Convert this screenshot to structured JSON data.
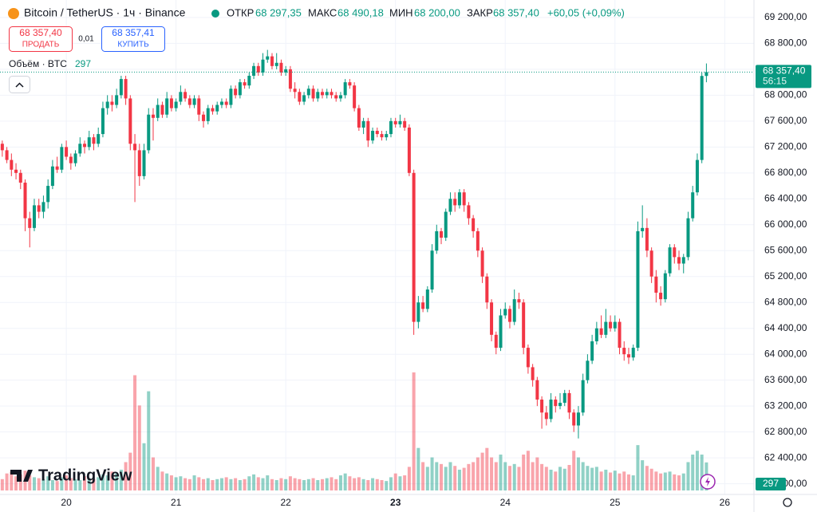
{
  "header": {
    "symbol": "Bitcoin / TetherUS · 1ч · Binance",
    "open_label": "ОТКР",
    "open": "68 297,35",
    "high_label": "МАКС",
    "high": "68 490,18",
    "low_label": "МИН",
    "low": "68 200,00",
    "close_label": "ЗАКР",
    "close": "68 357,40",
    "change": "+60,05 (+0,09%)"
  },
  "trade": {
    "sell_price": "68 357,40",
    "sell": "ПРОДАТЬ",
    "spread": "0,01",
    "buy_price": "68 357,41",
    "buy": "КУПИТЬ"
  },
  "volume_legend": "Объём · BTC",
  "logo": "TradingView",
  "chart_data": {
    "type": "candlestick",
    "up_color": "#089981",
    "down_color": "#f23645",
    "grid": true,
    "xlim": [
      -0.5,
      164.4
    ],
    "xticks": [
      {
        "value": 14,
        "label": "20"
      },
      {
        "value": 38,
        "label": "21"
      },
      {
        "value": 62,
        "label": "22"
      },
      {
        "value": 86,
        "label": "23"
      },
      {
        "value": 110,
        "label": "24"
      },
      {
        "value": 134,
        "label": "25"
      },
      {
        "value": 158,
        "label": "26"
      }
    ],
    "ylim": [
      61835,
      69470
    ],
    "yticks": [
      {
        "value": 62000,
        "label": "62 000,00"
      },
      {
        "value": 62400,
        "label": "62 400,00"
      },
      {
        "value": 62800,
        "label": "62 800,00"
      },
      {
        "value": 63200,
        "label": "63 200,00"
      },
      {
        "value": 63600,
        "label": "63 600,00"
      },
      {
        "value": 64000,
        "label": "64 000,00"
      },
      {
        "value": 64400,
        "label": "64 400,00"
      },
      {
        "value": 64800,
        "label": "64 800,00"
      },
      {
        "value": 65200,
        "label": "65 200,00"
      },
      {
        "value": 65600,
        "label": "65 600,00"
      },
      {
        "value": 66000,
        "label": "66 000,00"
      },
      {
        "value": 66400,
        "label": "66 400,00"
      },
      {
        "value": 66800,
        "label": "66 800,00"
      },
      {
        "value": 67200,
        "label": "67 200,00"
      },
      {
        "value": 67600,
        "label": "67 600,00"
      },
      {
        "value": 68000,
        "label": "68 000,00"
      },
      {
        "value": 68400,
        "label": "68 400,00"
      },
      {
        "value": 68800,
        "label": "68 800,00"
      },
      {
        "value": 69200,
        "label": "69 200,00"
      }
    ],
    "price_label": {
      "value": 68357.4,
      "label": "68 357,40"
    },
    "countdown": "56:15",
    "vlim": [
      0,
      1300
    ],
    "ohlc": [
      [
        67250,
        67300,
        67050,
        67150
      ],
      [
        67150,
        67200,
        66950,
        67000
      ],
      [
        67000,
        67100,
        66750,
        66850
      ],
      [
        66850,
        66950,
        66700,
        66800
      ],
      [
        66800,
        66850,
        66550,
        66650
      ],
      [
        66650,
        66700,
        65900,
        66100
      ],
      [
        66100,
        66200,
        65650,
        65950
      ],
      [
        65950,
        66400,
        65900,
        66300
      ],
      [
        66300,
        66400,
        66100,
        66200
      ],
      [
        66200,
        66450,
        66100,
        66350
      ],
      [
        66350,
        66700,
        66250,
        66600
      ],
      [
        66600,
        67000,
        66550,
        66900
      ],
      [
        66900,
        67050,
        66800,
        66850
      ],
      [
        66850,
        67250,
        66800,
        67200
      ],
      [
        67200,
        67300,
        67000,
        67050
      ],
      [
        67050,
        67100,
        66850,
        66950
      ],
      [
        66950,
        67150,
        66900,
        67100
      ],
      [
        67100,
        67350,
        67050,
        67250
      ],
      [
        67250,
        67300,
        67100,
        67200
      ],
      [
        67200,
        67450,
        67150,
        67350
      ],
      [
        67350,
        67400,
        67150,
        67250
      ],
      [
        67250,
        67500,
        67200,
        67400
      ],
      [
        67400,
        67900,
        67350,
        67800
      ],
      [
        67800,
        68000,
        67700,
        67900
      ],
      [
        67900,
        68000,
        67750,
        67850
      ],
      [
        67850,
        68100,
        67800,
        68000
      ],
      [
        68000,
        68300,
        67950,
        68250
      ],
      [
        68250,
        68300,
        67850,
        67950
      ],
      [
        67950,
        68000,
        67150,
        67250
      ],
      [
        67250,
        67400,
        66350,
        67150
      ],
      [
        67150,
        67250,
        66600,
        66750
      ],
      [
        66750,
        67250,
        66700,
        67150
      ],
      [
        67150,
        67800,
        67100,
        67700
      ],
      [
        67700,
        67800,
        67300,
        67650
      ],
      [
        67650,
        67950,
        67600,
        67850
      ],
      [
        67850,
        67900,
        67650,
        67700
      ],
      [
        67700,
        68050,
        67650,
        67950
      ],
      [
        67950,
        68000,
        67750,
        67800
      ],
      [
        67800,
        67950,
        67750,
        67900
      ],
      [
        67900,
        68150,
        67850,
        68050
      ],
      [
        68050,
        68100,
        67900,
        67950
      ],
      [
        67950,
        68000,
        67800,
        67850
      ],
      [
        67850,
        68000,
        67800,
        67950
      ],
      [
        67950,
        68000,
        67600,
        67700
      ],
      [
        67700,
        67750,
        67500,
        67600
      ],
      [
        67600,
        67850,
        67550,
        67800
      ],
      [
        67800,
        67850,
        67700,
        67750
      ],
      [
        67750,
        67900,
        67700,
        67850
      ],
      [
        67850,
        67950,
        67800,
        67900
      ],
      [
        67900,
        67950,
        67800,
        67850
      ],
      [
        67850,
        68150,
        67800,
        68100
      ],
      [
        68100,
        68150,
        67950,
        68000
      ],
      [
        68000,
        68250,
        67950,
        68200
      ],
      [
        68200,
        68250,
        68100,
        68150
      ],
      [
        68150,
        68350,
        68100,
        68300
      ],
      [
        68300,
        68500,
        68250,
        68450
      ],
      [
        68450,
        68500,
        68300,
        68350
      ],
      [
        68350,
        68650,
        68300,
        68550
      ],
      [
        68550,
        68700,
        68500,
        68600
      ],
      [
        68600,
        68650,
        68400,
        68450
      ],
      [
        68450,
        68650,
        68400,
        68500
      ],
      [
        68500,
        68550,
        68300,
        68350
      ],
      [
        68350,
        68450,
        68300,
        68400
      ],
      [
        68400,
        68450,
        68050,
        68100
      ],
      [
        68100,
        68200,
        67950,
        68050
      ],
      [
        68050,
        68100,
        67850,
        67900
      ],
      [
        67900,
        68050,
        67850,
        68000
      ],
      [
        68000,
        68150,
        67950,
        68100
      ],
      [
        68100,
        68150,
        67900,
        67950
      ],
      [
        67950,
        68100,
        67900,
        68050
      ],
      [
        68050,
        68100,
        67950,
        68000
      ],
      [
        68000,
        68100,
        67950,
        68050
      ],
      [
        68050,
        68100,
        67950,
        68000
      ],
      [
        68000,
        68050,
        67900,
        67950
      ],
      [
        67950,
        68050,
        67900,
        68000
      ],
      [
        68000,
        68250,
        67950,
        68200
      ],
      [
        68200,
        68250,
        68100,
        68150
      ],
      [
        68150,
        68200,
        67750,
        67800
      ],
      [
        67800,
        67850,
        67450,
        67500
      ],
      [
        67500,
        67650,
        67400,
        67600
      ],
      [
        67600,
        67650,
        67200,
        67300
      ],
      [
        67300,
        67500,
        67250,
        67450
      ],
      [
        67450,
        67500,
        67350,
        67400
      ],
      [
        67400,
        67450,
        67300,
        67350
      ],
      [
        67350,
        67450,
        67300,
        67400
      ],
      [
        67400,
        67650,
        67350,
        67600
      ],
      [
        67600,
        67650,
        67500,
        67550
      ],
      [
        67550,
        67700,
        67500,
        67600
      ],
      [
        67600,
        67650,
        67450,
        67500
      ],
      [
        67500,
        67550,
        66750,
        66800
      ],
      [
        66800,
        66850,
        64300,
        64500
      ],
      [
        64500,
        64900,
        64400,
        64800
      ],
      [
        64800,
        64900,
        64650,
        64700
      ],
      [
        64700,
        65050,
        64650,
        65000
      ],
      [
        65000,
        65700,
        64950,
        65600
      ],
      [
        65600,
        66000,
        65550,
        65900
      ],
      [
        65900,
        65950,
        65700,
        65800
      ],
      [
        65800,
        66250,
        65750,
        66200
      ],
      [
        66200,
        66500,
        66150,
        66400
      ],
      [
        66400,
        66500,
        66200,
        66300
      ],
      [
        66300,
        66550,
        66250,
        66500
      ],
      [
        66500,
        66550,
        66200,
        66300
      ],
      [
        66300,
        66350,
        66000,
        66100
      ],
      [
        66100,
        66150,
        65800,
        65900
      ],
      [
        65900,
        65950,
        65500,
        65600
      ],
      [
        65600,
        65650,
        65100,
        65200
      ],
      [
        65200,
        65250,
        64700,
        64800
      ],
      [
        64800,
        64850,
        64200,
        64300
      ],
      [
        64300,
        64350,
        64000,
        64100
      ],
      [
        64100,
        64700,
        64050,
        64600
      ],
      [
        64600,
        64800,
        64550,
        64700
      ],
      [
        64700,
        64750,
        64400,
        64500
      ],
      [
        64500,
        65000,
        64450,
        64850
      ],
      [
        64850,
        64950,
        64700,
        64800
      ],
      [
        64800,
        64850,
        64000,
        64100
      ],
      [
        64100,
        64150,
        63700,
        63800
      ],
      [
        63800,
        63850,
        63500,
        63600
      ],
      [
        63600,
        63650,
        63200,
        63300
      ],
      [
        63300,
        63350,
        62850,
        63100
      ],
      [
        63100,
        63200,
        62900,
        63000
      ],
      [
        63000,
        63400,
        62950,
        63300
      ],
      [
        63300,
        63350,
        63100,
        63200
      ],
      [
        63200,
        63400,
        63150,
        63250
      ],
      [
        63250,
        63450,
        63200,
        63400
      ],
      [
        63400,
        63450,
        63000,
        63100
      ],
      [
        63100,
        63150,
        62800,
        62900
      ],
      [
        62900,
        63200,
        62700,
        63100
      ],
      [
        63100,
        63700,
        63050,
        63600
      ],
      [
        63600,
        64000,
        63550,
        63900
      ],
      [
        63900,
        64300,
        63850,
        64200
      ],
      [
        64200,
        64500,
        64150,
        64400
      ],
      [
        64400,
        64600,
        64250,
        64300
      ],
      [
        64300,
        64700,
        64250,
        64500
      ],
      [
        64500,
        64600,
        64350,
        64400
      ],
      [
        64400,
        64600,
        64350,
        64500
      ],
      [
        64500,
        64550,
        64000,
        64100
      ],
      [
        64100,
        64200,
        63900,
        64000
      ],
      [
        64000,
        64100,
        63850,
        63950
      ],
      [
        63950,
        64150,
        63900,
        64100
      ],
      [
        64100,
        66050,
        64050,
        65900
      ],
      [
        65900,
        66300,
        65800,
        65950
      ],
      [
        65950,
        66100,
        65500,
        65600
      ],
      [
        65600,
        65650,
        65100,
        65200
      ],
      [
        65200,
        65300,
        64800,
        64950
      ],
      [
        64950,
        65050,
        64750,
        64850
      ],
      [
        64850,
        65300,
        64800,
        65250
      ],
      [
        65250,
        65700,
        65200,
        65650
      ],
      [
        65650,
        65700,
        65400,
        65500
      ],
      [
        65500,
        65600,
        65300,
        65400
      ],
      [
        65400,
        65550,
        65250,
        65500
      ],
      [
        65500,
        66200,
        65450,
        66100
      ],
      [
        66100,
        66600,
        66050,
        66500
      ],
      [
        66500,
        67100,
        66450,
        67000
      ],
      [
        67000,
        68350,
        66950,
        68297.35
      ],
      [
        68297.35,
        68490.18,
        68200,
        68357.4
      ]
    ],
    "volume": [
      120,
      180,
      200,
      150,
      170,
      210,
      160,
      140,
      130,
      120,
      150,
      110,
      100,
      140,
      160,
      130,
      120,
      110,
      150,
      130,
      120,
      140,
      170,
      160,
      200,
      180,
      220,
      300,
      400,
      1220,
      900,
      500,
      1050,
      350,
      250,
      200,
      180,
      160,
      140,
      150,
      130,
      120,
      160,
      140,
      120,
      130,
      110,
      120,
      130,
      140,
      120,
      130,
      110,
      120,
      150,
      170,
      140,
      130,
      160,
      120,
      110,
      130,
      120,
      150,
      130,
      120,
      110,
      120,
      130,
      110,
      120,
      130,
      140,
      120,
      160,
      180,
      150,
      130,
      140,
      120,
      110,
      130,
      120,
      110,
      100,
      140,
      180,
      150,
      160,
      250,
      1250,
      450,
      300,
      250,
      350,
      300,
      280,
      250,
      300,
      260,
      220,
      240,
      280,
      300,
      350,
      400,
      450,
      350,
      300,
      380,
      300,
      260,
      280,
      250,
      380,
      420,
      300,
      350,
      280,
      250,
      220,
      200,
      250,
      230,
      270,
      420,
      350,
      300,
      260,
      240,
      250,
      200,
      220,
      190,
      210,
      180,
      200,
      170,
      160,
      480,
      320,
      260,
      230,
      200,
      180,
      190,
      200,
      170,
      160,
      180,
      300,
      380,
      420,
      380,
      297
    ]
  }
}
